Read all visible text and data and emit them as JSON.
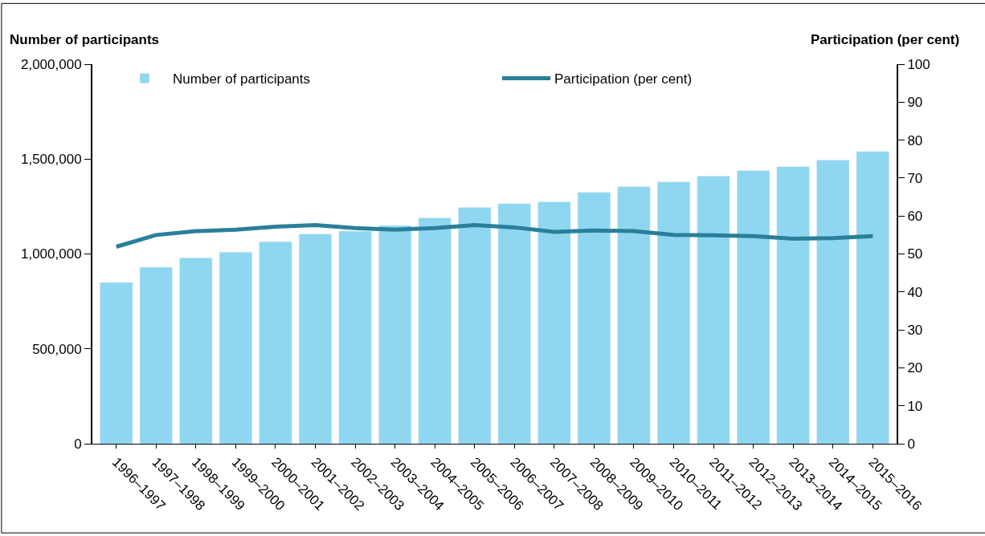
{
  "chart_data": {
    "type": "bar",
    "ylabel": "Number of participants",
    "y2label": "Participation (per cent)",
    "categories": [
      "1996–1997",
      "1997–1998",
      "1998–1999",
      "1999–2000",
      "2000–2001",
      "2001–2002",
      "2002–2003",
      "2003–2004",
      "2004–2005",
      "2005–2006",
      "2006–2007",
      "2007–2008",
      "2008–2009",
      "2009–2010",
      "2010–2011",
      "2011–2012",
      "2012–2013",
      "2013–2014",
      "2014–2015",
      "2015–2016"
    ],
    "series": [
      {
        "name": "Number of participants",
        "color": "#8fd7f0",
        "values": [
          850000,
          930000,
          980000,
          1010000,
          1065000,
          1105000,
          1120000,
          1150000,
          1190000,
          1245000,
          1265000,
          1275000,
          1325000,
          1355000,
          1380000,
          1410000,
          1440000,
          1460000,
          1495000,
          1540000
        ]
      },
      {
        "name": "Participation (per cent)",
        "type": "line",
        "axis": "y2",
        "color": "#2a7f99",
        "values": [
          51.9,
          55.0,
          56.0,
          56.4,
          57.2,
          57.6,
          56.8,
          56.4,
          56.8,
          57.6,
          57.0,
          55.8,
          56.2,
          56.0,
          55.0,
          54.9,
          54.7,
          54.0,
          54.2,
          54.7
        ]
      }
    ],
    "ylim": [
      0,
      2000000
    ],
    "yticks": [
      {
        "value": 0,
        "label": "0"
      },
      {
        "value": 500000,
        "label": "500,000"
      },
      {
        "value": 1000000,
        "label": "1,000,000"
      },
      {
        "value": 1500000,
        "label": "1,500,000"
      },
      {
        "value": 2000000,
        "label": "2,000,000"
      }
    ],
    "y2lim": [
      0,
      100
    ],
    "y2ticks": [
      0,
      10,
      20,
      30,
      40,
      50,
      60,
      70,
      80,
      90,
      100
    ],
    "legend": "top",
    "marker": "none",
    "line_style": "solid"
  }
}
